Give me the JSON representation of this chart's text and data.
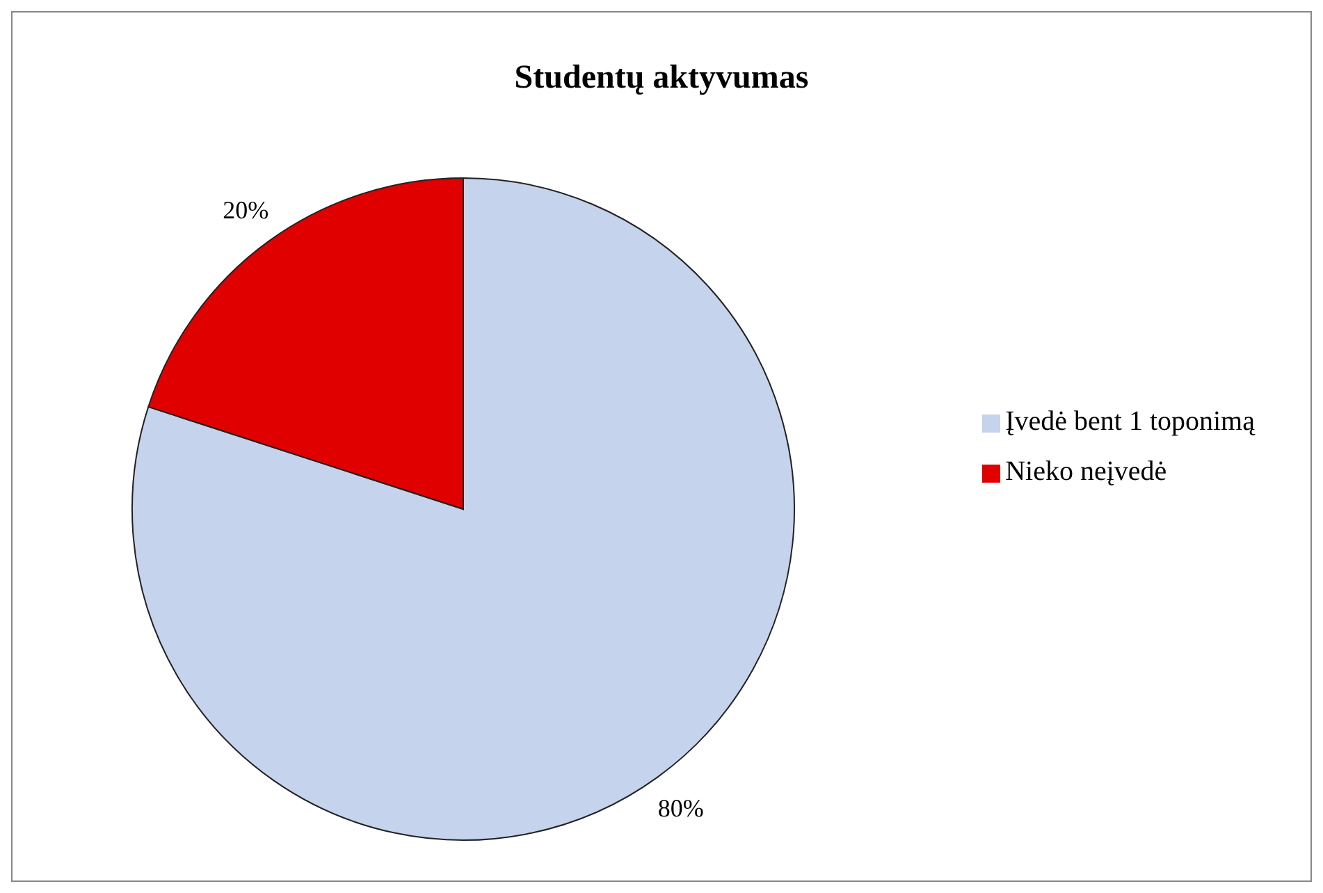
{
  "chart_data": {
    "type": "pie",
    "title": "Studentų aktyvumas",
    "categories": [
      "Įvedė bent 1 toponimą",
      "Nieko neįvedė"
    ],
    "values": [
      80,
      20
    ],
    "colors": [
      "#c5d3ec",
      "#e00000"
    ],
    "value_labels": [
      "80%",
      "20%"
    ],
    "legend": "right"
  }
}
